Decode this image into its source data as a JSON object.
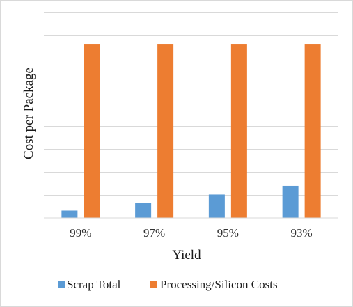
{
  "chart_data": {
    "type": "bar",
    "categories": [
      "99%",
      "97%",
      "95%",
      "93%"
    ],
    "series": [
      {
        "name": "Scrap Total",
        "values": [
          0.16,
          0.33,
          0.51,
          0.7
        ],
        "color": "#5b9bd5"
      },
      {
        "name": "Processing/Silicon Costs",
        "values": [
          3.8,
          3.8,
          3.8,
          3.8
        ],
        "color": "#ed7d31"
      }
    ],
    "xlabel": "Yield",
    "ylabel": "Cost per Package",
    "ylim": [
      0,
      4.5
    ],
    "grid": true,
    "legend_position": "bottom",
    "y_tick_labels_shown": false
  }
}
